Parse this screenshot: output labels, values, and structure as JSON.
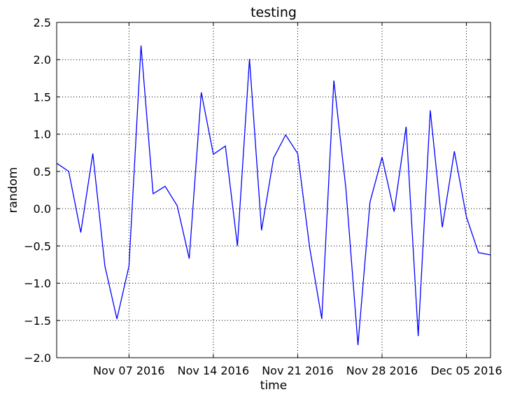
{
  "chart_data": {
    "type": "line",
    "title": "testing",
    "xlabel": "time",
    "ylabel": "random",
    "x_start": "2016-11-01",
    "x_end": "2016-12-07",
    "xticks": [
      {
        "date": "2016-11-07",
        "label": "Nov 07 2016"
      },
      {
        "date": "2016-11-14",
        "label": "Nov 14 2016"
      },
      {
        "date": "2016-11-21",
        "label": "Nov 21 2016"
      },
      {
        "date": "2016-11-28",
        "label": "Nov 28 2016"
      },
      {
        "date": "2016-12-05",
        "label": "Dec 05 2016"
      }
    ],
    "ylim": [
      -2.0,
      2.5
    ],
    "yticks": [
      -2.0,
      -1.5,
      -1.0,
      -0.5,
      0.0,
      0.5,
      1.0,
      1.5,
      2.0,
      2.5
    ],
    "ytick_labels": [
      "−2.0",
      "−1.5",
      "−1.0",
      "−0.5",
      "0.0",
      "0.5",
      "1.0",
      "1.5",
      "2.0",
      "2.5"
    ],
    "grid": true,
    "colors": {
      "line": "#0000ff",
      "grid": "#000000",
      "axes": "#000000"
    },
    "series": [
      {
        "x": [
          "2016-11-01",
          "2016-11-02",
          "2016-11-03",
          "2016-11-04",
          "2016-11-05",
          "2016-11-06",
          "2016-11-07",
          "2016-11-08",
          "2016-11-09",
          "2016-11-10",
          "2016-11-11",
          "2016-11-12",
          "2016-11-13",
          "2016-11-14",
          "2016-11-15",
          "2016-11-16",
          "2016-11-17",
          "2016-11-18",
          "2016-11-19",
          "2016-11-20",
          "2016-11-21",
          "2016-11-22",
          "2016-11-23",
          "2016-11-24",
          "2016-11-25",
          "2016-11-26",
          "2016-11-27",
          "2016-11-28",
          "2016-11-29",
          "2016-11-30",
          "2016-12-01",
          "2016-12-02",
          "2016-12-03",
          "2016-12-04",
          "2016-12-05",
          "2016-12-06",
          "2016-12-07"
        ],
        "values": [
          0.61,
          0.5,
          -0.32,
          0.74,
          -0.77,
          -1.48,
          -0.77,
          2.19,
          0.2,
          0.3,
          0.04,
          -0.67,
          1.56,
          0.73,
          0.84,
          -0.5,
          2.01,
          -0.29,
          0.68,
          0.99,
          0.74,
          -0.53,
          -1.48,
          1.72,
          0.27,
          -1.83,
          0.09,
          0.69,
          -0.04,
          1.1,
          -1.71,
          1.32,
          -0.25,
          0.77,
          -0.11,
          -0.59,
          -0.62
        ]
      }
    ]
  }
}
